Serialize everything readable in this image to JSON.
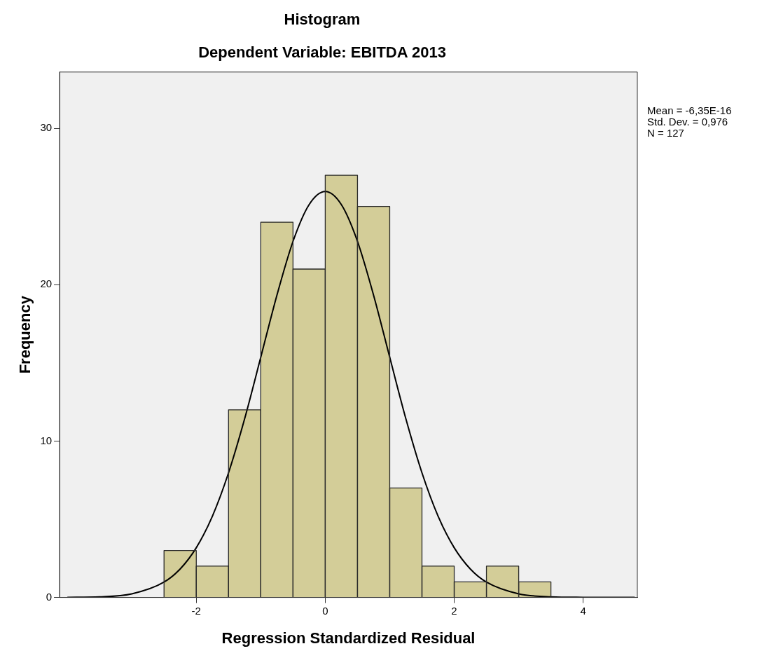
{
  "chart_data": {
    "type": "histogram",
    "title": "Histogram",
    "subtitle": "Dependent Variable: EBITDA 2013",
    "xlabel": "Regression Standardized Residual",
    "ylabel": "Frequency",
    "bins": [
      -2.5,
      -2,
      -1.5,
      -1,
      -0.5,
      0,
      0.5,
      1,
      1.5,
      2,
      2.5,
      3,
      3.5
    ],
    "values": [
      3,
      2,
      12,
      24,
      21,
      27,
      25,
      7,
      2,
      1,
      2,
      1
    ],
    "color": "#d3cd98",
    "series": [
      {
        "type": "line",
        "color": "#000000",
        "x": [
          -4.0,
          -3.5,
          -3.0,
          -2.5,
          -2.25,
          -2.0,
          -1.75,
          -1.5,
          -1.25,
          -1.0,
          -0.75,
          -0.5,
          -0.25,
          0,
          0.25,
          0.5,
          0.75,
          1.0,
          1.25,
          1.5,
          1.75,
          2.0,
          2.25,
          2.5,
          3.0,
          3.5,
          4.0,
          4.8
        ],
        "values": [
          0.01,
          0.04,
          0.23,
          0.98,
          1.82,
          3.18,
          5.2,
          7.97,
          11.43,
          15.36,
          19.32,
          22.77,
          25.12,
          25.96,
          25.12,
          22.77,
          19.32,
          15.36,
          11.43,
          7.97,
          5.2,
          3.18,
          1.82,
          0.98,
          0.23,
          0.04,
          0.01,
          0
        ]
      }
    ],
    "xlim": [
      -4.12,
      4.84
    ],
    "xticks": [
      -2,
      0,
      2,
      4
    ],
    "ylim": [
      0,
      33.6
    ],
    "yticks": [
      0,
      10,
      20,
      30
    ],
    "grid": false,
    "legend": false,
    "annotations": [
      "Mean = -6,35E-16",
      "Std. Dev. = 0,976",
      "N = 127"
    ]
  }
}
